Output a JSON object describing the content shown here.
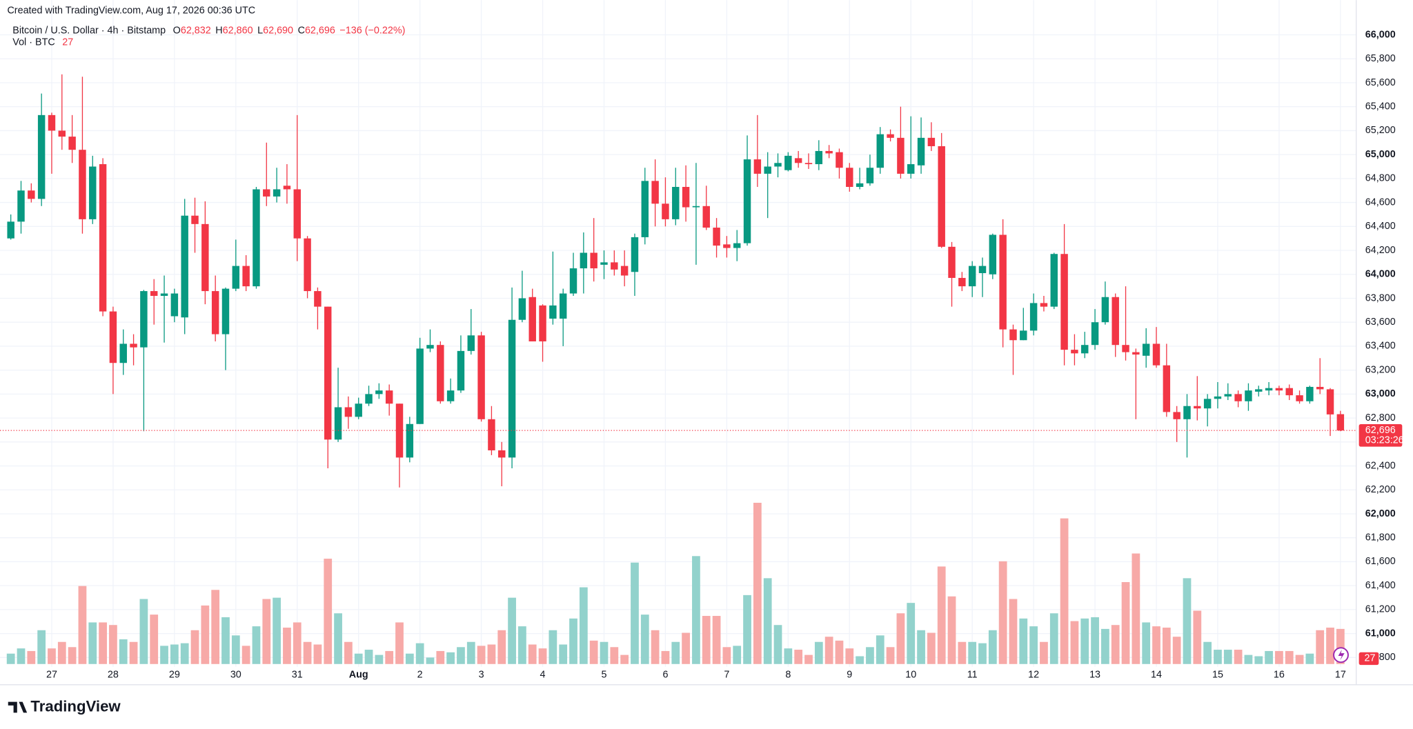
{
  "chart_data": {
    "type": "candlestick",
    "watermark": "Created with TradingView.com, Aug 17, 2026 00:36 UTC",
    "title": "Bitcoin / U.S. Dollar · 4h · Bitstamp",
    "ohlc_legend": [
      {
        "key": "O",
        "value": "62,832"
      },
      {
        "key": "H",
        "value": "62,860"
      },
      {
        "key": "L",
        "value": "62,690"
      },
      {
        "key": "C",
        "value": "62,696"
      }
    ],
    "change_label": "−136 (−0.22%)",
    "volume_legend": "Vol · BTC",
    "volume_value_label": "27",
    "last_price_label": "62,696",
    "countdown": "03:23:26",
    "brand": "TradingView",
    "up_color": "#089981",
    "down_color": "#f23645",
    "volume_up_color": "#92d2cc",
    "volume_down_color": "#f7a9a7",
    "grid": true,
    "categories": [
      null,
      null,
      null,
      null,
      "27",
      null,
      null,
      null,
      null,
      null,
      "28",
      null,
      null,
      null,
      null,
      null,
      "29",
      null,
      null,
      null,
      null,
      null,
      "30",
      null,
      null,
      null,
      null,
      null,
      "31",
      null,
      null,
      null,
      null,
      null,
      "Aug",
      null,
      null,
      null,
      null,
      null,
      "2",
      null,
      null,
      null,
      null,
      null,
      "3",
      null,
      null,
      null,
      null,
      null,
      "4",
      null,
      null,
      null,
      null,
      null,
      "5",
      null,
      null,
      null,
      null,
      null,
      "6",
      null,
      null,
      null,
      null,
      null,
      "7",
      null,
      null,
      null,
      null,
      null,
      "8",
      null,
      null,
      null,
      null,
      null,
      "9",
      null,
      null,
      null,
      null,
      null,
      "10",
      null,
      null,
      null,
      null,
      null,
      "11",
      null,
      null,
      null,
      null,
      null,
      "12",
      null,
      null,
      null,
      null,
      null,
      "13",
      null,
      null,
      null,
      null,
      null,
      "14",
      null,
      null,
      null,
      null,
      null,
      "15",
      null,
      null,
      null,
      null,
      null,
      "16",
      null,
      null,
      null,
      null,
      null,
      "17"
    ],
    "open": [
      64300,
      64440,
      64700,
      64630,
      65330,
      65200,
      65150,
      65040,
      64460,
      64920,
      63690,
      63260,
      63420,
      63390,
      63860,
      63820,
      63650,
      63640,
      64490,
      64420,
      63860,
      63500,
      63880,
      64070,
      63900,
      64710,
      64650,
      64740,
      64710,
      64300,
      63860,
      63730,
      62620,
      62890,
      62810,
      62920,
      63000,
      63030,
      62920,
      62470,
      62750,
      63380,
      63410,
      62940,
      63030,
      63360,
      63490,
      62790,
      62530,
      62470,
      63620,
      63810,
      63740,
      63630,
      63630,
      63840,
      64050,
      64180,
      64080,
      64100,
      64070,
      64020,
      64310,
      64780,
      64590,
      64460,
      64730,
      64560,
      64570,
      64390,
      64250,
      64220,
      64260,
      64960,
      64840,
      64900,
      64870,
      64970,
      64930,
      64920,
      65030,
      65020,
      64890,
      64730,
      64760,
      64890,
      65170,
      65140,
      64840,
      64910,
      65140,
      65070,
      64230,
      63970,
      63900,
      64010,
      64000,
      64330,
      63540,
      63450,
      63530,
      63760,
      63730,
      64170,
      63370,
      63340,
      63410,
      63600,
      63810,
      63410,
      63350,
      63320,
      63420,
      63240,
      62850,
      62790,
      62900,
      62880,
      62960,
      62980,
      63000,
      62940,
      63020,
      63030,
      63050,
      63050,
      62990,
      62940,
      63060,
      63040,
      62832
    ],
    "high": [
      64500,
      64780,
      64760,
      65510,
      65350,
      65670,
      65330,
      65650,
      64990,
      64970,
      63730,
      63540,
      63500,
      63870,
      63960,
      63990,
      63880,
      64630,
      64640,
      64610,
      63990,
      63890,
      64290,
      64160,
      64730,
      65100,
      64890,
      64920,
      65330,
      64320,
      63890,
      63730,
      63220,
      62980,
      62970,
      63070,
      63090,
      63080,
      62920,
      62810,
      63470,
      63540,
      63440,
      63130,
      63490,
      63710,
      63520,
      62900,
      62600,
      63890,
      64030,
      63880,
      63750,
      64190,
      63880,
      64180,
      64350,
      64470,
      64200,
      64200,
      64200,
      64340,
      64890,
      64960,
      64810,
      64890,
      64910,
      64930,
      64740,
      64470,
      64320,
      64370,
      65160,
      65330,
      65020,
      65010,
      65020,
      65030,
      65010,
      65120,
      65080,
      65050,
      64930,
      64890,
      65000,
      65230,
      65210,
      65400,
      65320,
      65310,
      65270,
      65180,
      64270,
      64020,
      64110,
      64140,
      64340,
      64460,
      63580,
      63720,
      63840,
      63820,
      64180,
      64420,
      63500,
      63520,
      63710,
      63940,
      63840,
      63900,
      63380,
      63550,
      63560,
      63420,
      62900,
      63000,
      63150,
      63000,
      63100,
      63090,
      63030,
      63090,
      63070,
      63100,
      63070,
      63080,
      63030,
      63070,
      63300,
      63050,
      62860
    ],
    "low": [
      64290,
      64340,
      64600,
      64570,
      64840,
      65040,
      64930,
      64340,
      64420,
      63650,
      63000,
      63160,
      63240,
      62690,
      63580,
      63430,
      63600,
      63500,
      64180,
      63750,
      63440,
      63200,
      63860,
      63860,
      63880,
      64570,
      64600,
      64590,
      64110,
      63800,
      63540,
      62380,
      62600,
      62710,
      62790,
      62900,
      62960,
      62820,
      62220,
      62430,
      62750,
      63350,
      62920,
      62920,
      63010,
      63330,
      62770,
      62490,
      62230,
      62380,
      63600,
      63440,
      63270,
      63580,
      63400,
      63820,
      63840,
      63940,
      63960,
      63990,
      63900,
      63820,
      64250,
      64400,
      64400,
      64410,
      64440,
      64080,
      64370,
      64140,
      64140,
      64110,
      64240,
      64730,
      64470,
      64810,
      64860,
      64890,
      64880,
      64870,
      64970,
      64800,
      64690,
      64710,
      64740,
      64840,
      65110,
      64800,
      64800,
      64840,
      65030,
      64220,
      63730,
      63860,
      63810,
      63810,
      63960,
      63390,
      63160,
      63450,
      63490,
      63690,
      63710,
      63240,
      63240,
      63300,
      63370,
      63580,
      63310,
      63280,
      62790,
      63220,
      63220,
      62810,
      62600,
      62470,
      62780,
      62730,
      62880,
      62950,
      62890,
      62860,
      62980,
      62990,
      62990,
      62950,
      62920,
      62920,
      63000,
      62650,
      62690
    ],
    "close": [
      64440,
      64700,
      64630,
      65330,
      65200,
      65150,
      65040,
      64460,
      64900,
      63690,
      63260,
      63420,
      63390,
      63860,
      63820,
      63840,
      63840,
      64490,
      64420,
      63860,
      63500,
      63880,
      64070,
      63900,
      64710,
      64650,
      64710,
      64710,
      64300,
      63860,
      63730,
      62620,
      62890,
      62810,
      62920,
      63000,
      63030,
      62920,
      62470,
      62750,
      63380,
      63410,
      62940,
      63030,
      63360,
      63490,
      62790,
      62530,
      62470,
      63620,
      63800,
      63440,
      63440,
      63740,
      63840,
      64050,
      64180,
      64050,
      64100,
      64040,
      63990,
      64310,
      64780,
      64590,
      64460,
      64730,
      64560,
      64570,
      64390,
      64240,
      64220,
      64260,
      64960,
      64840,
      64900,
      64930,
      64990,
      64930,
      64920,
      65030,
      65010,
      64890,
      64730,
      64760,
      64890,
      65170,
      65140,
      64840,
      64920,
      65140,
      65070,
      64230,
      63970,
      63900,
      64070,
      64070,
      64330,
      63540,
      63450,
      63530,
      63760,
      63730,
      64170,
      63370,
      63340,
      63410,
      63600,
      63810,
      63410,
      63350,
      63330,
      63420,
      63240,
      62850,
      62790,
      62900,
      62880,
      62960,
      62980,
      63000,
      62940,
      63030,
      63040,
      63050,
      63030,
      62990,
      62940,
      63060,
      63040,
      62830,
      62696
    ],
    "volume": [
      8,
      12,
      10,
      26,
      12,
      17,
      13,
      60,
      32,
      32,
      30,
      19,
      17,
      50,
      38,
      14,
      15,
      16,
      26,
      45,
      57,
      36,
      22,
      14,
      29,
      50,
      51,
      28,
      32,
      17,
      15,
      81,
      39,
      17,
      8,
      11,
      7,
      10,
      32,
      8,
      16,
      5,
      10,
      9,
      13,
      17,
      14,
      15,
      26,
      51,
      29,
      15,
      12,
      26,
      15,
      35,
      59,
      18,
      17,
      13,
      7,
      78,
      38,
      26,
      10,
      17,
      24,
      83,
      37,
      37,
      13,
      14,
      53,
      124,
      66,
      30,
      12,
      11,
      7,
      17,
      21,
      18,
      12,
      6,
      13,
      22,
      13,
      39,
      47,
      26,
      24,
      75,
      52,
      17,
      17,
      16,
      26,
      79,
      50,
      35,
      29,
      17,
      39,
      112,
      33,
      35,
      36,
      27,
      30,
      63,
      85,
      32,
      29,
      28,
      21,
      66,
      41,
      17,
      11,
      11,
      11,
      7,
      6,
      10,
      10,
      10,
      7,
      8,
      26,
      28,
      27
    ],
    "ylim": [
      60580,
      66290
    ],
    "yticks": [
      {
        "value": 66000,
        "label": "66,000"
      },
      {
        "value": 65800,
        "label": "65,800"
      },
      {
        "value": 65600,
        "label": "65,600"
      },
      {
        "value": 65400,
        "label": "65,400"
      },
      {
        "value": 65200,
        "label": "65,200"
      },
      {
        "value": 65000,
        "label": "65,000"
      },
      {
        "value": 64800,
        "label": "64,800"
      },
      {
        "value": 64600,
        "label": "64,600"
      },
      {
        "value": 64400,
        "label": "64,400"
      },
      {
        "value": 64200,
        "label": "64,200"
      },
      {
        "value": 64000,
        "label": "64,000"
      },
      {
        "value": 63800,
        "label": "63,800"
      },
      {
        "value": 63600,
        "label": "63,600"
      },
      {
        "value": 63400,
        "label": "63,400"
      },
      {
        "value": 63200,
        "label": "63,200"
      },
      {
        "value": 63000,
        "label": "63,000"
      },
      {
        "value": 62800,
        "label": "62,800"
      },
      {
        "value": 62600,
        "label": "62,600"
      },
      {
        "value": 62400,
        "label": "62,400"
      },
      {
        "value": 62200,
        "label": "62,200"
      },
      {
        "value": 62000,
        "label": "62,000"
      },
      {
        "value": 61800,
        "label": "61,800"
      },
      {
        "value": 61600,
        "label": "61,600"
      },
      {
        "value": 61400,
        "label": "61,400"
      },
      {
        "value": 61200,
        "label": "61,200"
      },
      {
        "value": 61000,
        "label": "61,000"
      },
      {
        "value": 60800,
        "label": "60,800"
      }
    ]
  }
}
